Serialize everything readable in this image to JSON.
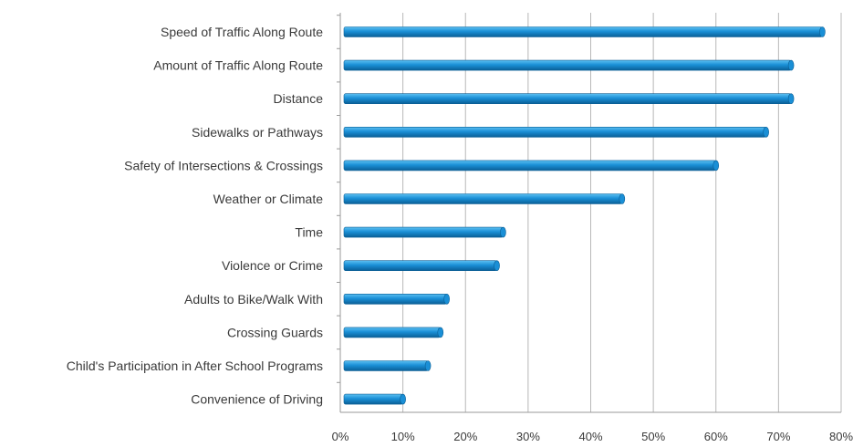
{
  "chart_data": {
    "type": "bar",
    "orientation": "horizontal",
    "categories": [
      "Speed of Traffic Along Route",
      "Amount of Traffic Along Route",
      "Distance",
      "Sidewalks or Pathways",
      "Safety of Intersections & Crossings",
      "Weather or Climate",
      "Time",
      "Violence or Crime",
      "Adults to Bike/Walk With",
      "Crossing Guards",
      "Child's Participation in After School Programs",
      "Convenience of Driving"
    ],
    "values": [
      77,
      72,
      72,
      68,
      60,
      45,
      26,
      25,
      17,
      16,
      14,
      10
    ],
    "xlim": [
      0,
      80
    ],
    "x_ticks": [
      "0%",
      "10%",
      "20%",
      "30%",
      "40%",
      "50%",
      "60%",
      "70%",
      "80%"
    ],
    "title": "",
    "xlabel": "",
    "ylabel": "",
    "grid": "vertical",
    "bar_color": "#1a8fd6",
    "bar_color_light": "#5cc0f2",
    "bar_color_dark": "#0a5f96"
  }
}
